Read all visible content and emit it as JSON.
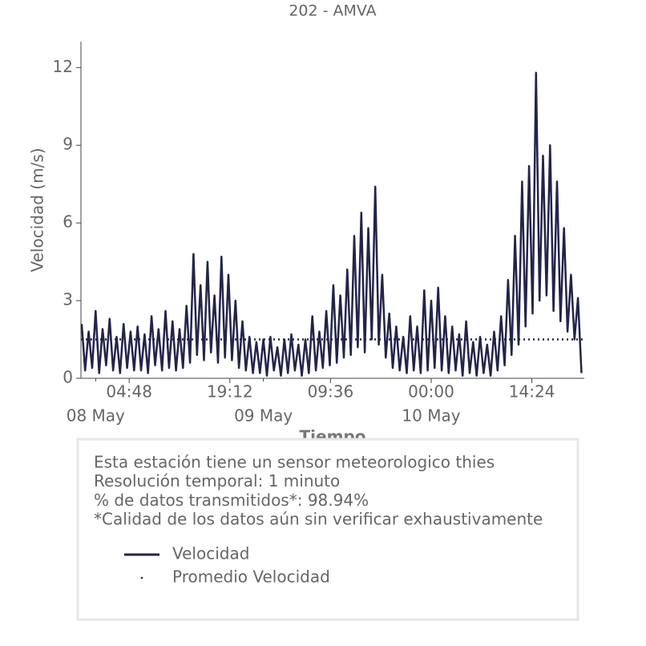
{
  "chart_data": {
    "type": "line",
    "title": "202 - AMVA",
    "xlabel": "Tiempo",
    "ylabel": "Velocidad (m/s)",
    "x": [
      "07 May 22:00",
      "07 May 22:30",
      "07 May 23:00",
      "07 May 23:30",
      "08 May 00:00",
      "08 May 00:30",
      "08 May 01:00",
      "08 May 01:30",
      "08 May 02:00",
      "08 May 02:30",
      "08 May 03:00",
      "08 May 03:30",
      "08 May 04:00",
      "08 May 04:30",
      "08 May 05:00",
      "08 May 05:30",
      "08 May 06:00",
      "08 May 06:30",
      "08 May 07:00",
      "08 May 07:30",
      "08 May 08:00",
      "08 May 08:30",
      "08 May 09:00",
      "08 May 09:30",
      "08 May 10:00",
      "08 May 10:30",
      "08 May 11:00",
      "08 May 11:30",
      "08 May 12:00",
      "08 May 12:30",
      "08 May 13:00",
      "08 May 13:30",
      "08 May 14:00",
      "08 May 14:30",
      "08 May 15:00",
      "08 May 15:30",
      "08 May 16:00",
      "08 May 16:30",
      "08 May 17:00",
      "08 May 17:30",
      "08 May 18:00",
      "08 May 18:30",
      "08 May 19:00",
      "08 May 19:30",
      "08 May 20:00",
      "08 May 20:30",
      "08 May 21:00",
      "08 May 21:30",
      "08 May 22:00",
      "08 May 22:30",
      "08 May 23:00",
      "08 May 23:30",
      "09 May 00:00",
      "09 May 00:30",
      "09 May 01:00",
      "09 May 01:30",
      "09 May 02:00",
      "09 May 02:30",
      "09 May 03:00",
      "09 May 03:30",
      "09 May 04:00",
      "09 May 04:30",
      "09 May 05:00",
      "09 May 05:30",
      "09 May 06:00",
      "09 May 06:30",
      "09 May 07:00",
      "09 May 07:30",
      "09 May 08:00",
      "09 May 08:30",
      "09 May 09:00",
      "09 May 09:30",
      "09 May 10:00",
      "09 May 10:30",
      "09 May 11:00",
      "09 May 11:30",
      "09 May 12:00",
      "09 May 12:30",
      "09 May 13:00",
      "09 May 13:30",
      "09 May 14:00",
      "09 May 14:30",
      "09 May 15:00",
      "09 May 15:30",
      "09 May 16:00",
      "09 May 16:30",
      "09 May 17:00",
      "09 May 17:30",
      "09 May 18:00",
      "09 May 18:30",
      "09 May 19:00",
      "09 May 19:30",
      "09 May 20:00",
      "09 May 20:30",
      "09 May 21:00",
      "09 May 21:30",
      "09 May 22:00",
      "09 May 22:30",
      "09 May 23:00",
      "09 May 23:30",
      "10 May 00:00",
      "10 May 00:30",
      "10 May 01:00",
      "10 May 01:30",
      "10 May 02:00",
      "10 May 02:30",
      "10 May 03:00",
      "10 May 03:30",
      "10 May 04:00",
      "10 May 04:30",
      "10 May 05:00",
      "10 May 05:30",
      "10 May 06:00",
      "10 May 06:30",
      "10 May 07:00",
      "10 May 07:30",
      "10 May 08:00",
      "10 May 08:30",
      "10 May 09:00",
      "10 May 09:30",
      "10 May 10:00",
      "10 May 10:30",
      "10 May 11:00",
      "10 May 11:30",
      "10 May 12:00",
      "10 May 12:30",
      "10 May 13:00",
      "10 May 13:30",
      "10 May 14:00",
      "10 May 14:30",
      "10 May 15:00",
      "10 May 15:30",
      "10 May 16:00",
      "10 May 16:30",
      "10 May 17:00",
      "10 May 17:30",
      "10 May 18:00",
      "10 May 18:30",
      "10 May 19:00",
      "10 May 19:30",
      "10 May 20:00",
      "10 May 20:30",
      "10 May 21:00",
      "10 May 21:30"
    ],
    "series": [
      {
        "name": "Velocidad",
        "color": "#22244a",
        "values": [
          2.1,
          0.3,
          1.8,
          0.4,
          2.6,
          0.2,
          1.9,
          0.5,
          2.3,
          0.3,
          1.6,
          0.2,
          2.1,
          0.4,
          1.8,
          0.3,
          2.0,
          0.3,
          1.7,
          0.2,
          2.4,
          0.5,
          1.9,
          0.3,
          2.6,
          0.4,
          2.2,
          0.3,
          1.9,
          0.4,
          2.8,
          0.6,
          4.8,
          0.9,
          3.6,
          0.7,
          4.5,
          1.0,
          3.2,
          0.6,
          4.7,
          0.8,
          4.0,
          0.7,
          3.0,
          0.4,
          2.2,
          0.3,
          1.6,
          0.2,
          1.4,
          0.2,
          1.5,
          0.1,
          1.6,
          0.3,
          1.2,
          0.1,
          1.5,
          0.2,
          1.7,
          0.3,
          1.3,
          0.1,
          1.5,
          0.2,
          2.4,
          0.3,
          1.8,
          0.4,
          2.6,
          0.5,
          3.6,
          0.6,
          3.2,
          0.8,
          4.2,
          0.9,
          5.5,
          1.2,
          6.4,
          1.0,
          5.8,
          1.5,
          7.4,
          1.3,
          4.0,
          0.8,
          2.5,
          0.4,
          2.0,
          0.3,
          1.6,
          0.2,
          2.4,
          0.3,
          2.0,
          0.2,
          3.4,
          0.3,
          3.0,
          0.4,
          3.5,
          0.3,
          2.4,
          0.2,
          2.0,
          0.3,
          1.7,
          0.1,
          2.2,
          0.2,
          1.4,
          0.1,
          1.6,
          0.2,
          1.3,
          0.1,
          1.8,
          0.3,
          2.4,
          0.5,
          3.8,
          0.9,
          5.5,
          1.3,
          7.6,
          2.0,
          8.2,
          2.5,
          11.8,
          3.0,
          8.6,
          3.2,
          9.0,
          2.6,
          7.6,
          2.2,
          5.8,
          1.8,
          4.0,
          1.5,
          3.1,
          0.2
        ]
      },
      {
        "name": "Promedio Velocidad",
        "color": "#22244a",
        "value": 1.5
      }
    ],
    "xlim": [
      "07 May 21:54",
      "10 May 21:54"
    ],
    "xticks": [
      {
        "value": "08 May 04:48",
        "label": "04:48"
      },
      {
        "value": "08 May 19:12",
        "label": "19:12"
      },
      {
        "value": "09 May 09:36",
        "label": "09:36"
      },
      {
        "value": "10 May 00:00",
        "label": "00:00"
      },
      {
        "value": "10 May 14:24",
        "label": "14:24"
      }
    ],
    "xticks_minor": [
      {
        "value": "08 May 00:00",
        "label": "08 May"
      },
      {
        "value": "09 May 00:00",
        "label": "09 May"
      },
      {
        "value": "10 May 00:00",
        "label": "10 May"
      }
    ],
    "ylim": [
      0,
      13
    ],
    "yticks": [
      0,
      3,
      6,
      9,
      12
    ],
    "notes": [
      "Esta estación tiene un sensor meteorologico thies",
      "Resolución temporal: 1 minuto",
      "% de datos transmitidos*: 98.94%",
      "*Calidad de los datos aún sin verificar exhaustivamente"
    ]
  }
}
